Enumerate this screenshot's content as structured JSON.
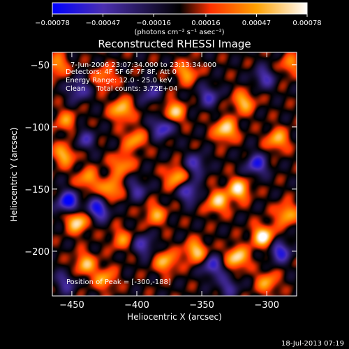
{
  "chart_data": {
    "type": "heatmap",
    "title": "Reconstructed RHESSI Image",
    "xlabel": "Heliocentric X (arcsec)",
    "ylabel": "Heliocentric Y (arcsec)",
    "xlim": [
      -465,
      -277
    ],
    "ylim": [
      -236,
      -40
    ],
    "xticks": [
      -450,
      -400,
      -350,
      -300
    ],
    "yticks": [
      -50,
      -100,
      -150,
      -200
    ],
    "xtick_labels": [
      "−450",
      "−400",
      "−350",
      "−300"
    ],
    "ytick_labels": [
      "−50",
      "−100",
      "−150",
      "−200"
    ],
    "colorbar": {
      "min": -0.00078,
      "max": 0.00078,
      "tick_values": [
        -0.00078,
        -0.00047,
        -0.00016,
        0.00016,
        0.00047,
        0.00078
      ],
      "tick_labels": [
        "−0.00078",
        "−0.00047",
        "−0.00016",
        "0.00016",
        "0.00047",
        "0.00078"
      ],
      "unit_label": "(photons cm⁻² s⁻¹ asec⁻²)",
      "colors": [
        "#0000ff",
        "#4b2fb0",
        "#000000",
        "#ff3000",
        "#ffa000",
        "#ffffff"
      ]
    },
    "annotations": [
      "7-Jun-2006 23:07:34.000 to 23:13:34.000",
      "Detectors: 4F 5F 6F 7F 8F, Att 0",
      "Energy Range: 12.0 - 25.0 keV",
      "Clean     Total counts: 3.72E+04"
    ],
    "peak_label": "Position of Peak = [-300,-188]",
    "peak": [
      -300,
      -188
    ],
    "footer_timestamp": "18-Jul-2013 07:19",
    "blobs": [
      {
        "x": -453,
        "y": -160,
        "v": -1.0
      },
      {
        "x": -430,
        "y": -166,
        "v": -0.9
      },
      {
        "x": -446,
        "y": -176,
        "v": 0.9
      },
      {
        "x": -420,
        "y": -150,
        "v": 0.7
      },
      {
        "x": -438,
        "y": -142,
        "v": 0.6
      },
      {
        "x": -456,
        "y": -122,
        "v": 0.7
      },
      {
        "x": -440,
        "y": -110,
        "v": -0.5
      },
      {
        "x": -455,
        "y": -95,
        "v": 0.5
      },
      {
        "x": -445,
        "y": -70,
        "v": -0.6
      },
      {
        "x": -425,
        "y": -60,
        "v": 0.5
      },
      {
        "x": -412,
        "y": -86,
        "v": 0.8
      },
      {
        "x": -402,
        "y": -110,
        "v": 0.6
      },
      {
        "x": -390,
        "y": -72,
        "v": -0.5
      },
      {
        "x": -380,
        "y": -100,
        "v": -0.8
      },
      {
        "x": -372,
        "y": -88,
        "v": 0.8
      },
      {
        "x": -362,
        "y": -56,
        "v": 0.6
      },
      {
        "x": -345,
        "y": -75,
        "v": -0.6
      },
      {
        "x": -332,
        "y": -102,
        "v": 0.9
      },
      {
        "x": -318,
        "y": -80,
        "v": 0.7
      },
      {
        "x": -302,
        "y": -60,
        "v": -0.6
      },
      {
        "x": -292,
        "y": -110,
        "v": 0.7
      },
      {
        "x": -308,
        "y": -130,
        "v": -0.8
      },
      {
        "x": -322,
        "y": -150,
        "v": 0.9
      },
      {
        "x": -338,
        "y": -160,
        "v": 0.8
      },
      {
        "x": -355,
        "y": -130,
        "v": -0.6
      },
      {
        "x": -370,
        "y": -140,
        "v": 0.7
      },
      {
        "x": -360,
        "y": -152,
        "v": -0.7
      },
      {
        "x": -386,
        "y": -170,
        "v": 0.6
      },
      {
        "x": -400,
        "y": -150,
        "v": -0.5
      },
      {
        "x": -412,
        "y": -130,
        "v": 0.6
      },
      {
        "x": -395,
        "y": -195,
        "v": -0.6
      },
      {
        "x": -378,
        "y": -208,
        "v": 0.7
      },
      {
        "x": -355,
        "y": -200,
        "v": 0.8
      },
      {
        "x": -342,
        "y": -212,
        "v": -0.7
      },
      {
        "x": -323,
        "y": -205,
        "v": 0.9
      },
      {
        "x": -303,
        "y": -188,
        "v": 1.0
      },
      {
        "x": -290,
        "y": -200,
        "v": -0.8
      },
      {
        "x": -285,
        "y": -170,
        "v": 0.7
      },
      {
        "x": -300,
        "y": -225,
        "v": 0.6
      },
      {
        "x": -330,
        "y": -228,
        "v": -0.5
      },
      {
        "x": -440,
        "y": -210,
        "v": 0.7
      },
      {
        "x": -425,
        "y": -222,
        "v": 0.6
      },
      {
        "x": -455,
        "y": -225,
        "v": -0.5
      },
      {
        "x": -412,
        "y": -190,
        "v": 0.5
      },
      {
        "x": -462,
        "y": -50,
        "v": 0.6
      },
      {
        "x": -282,
        "y": -50,
        "v": 0.5
      }
    ]
  }
}
